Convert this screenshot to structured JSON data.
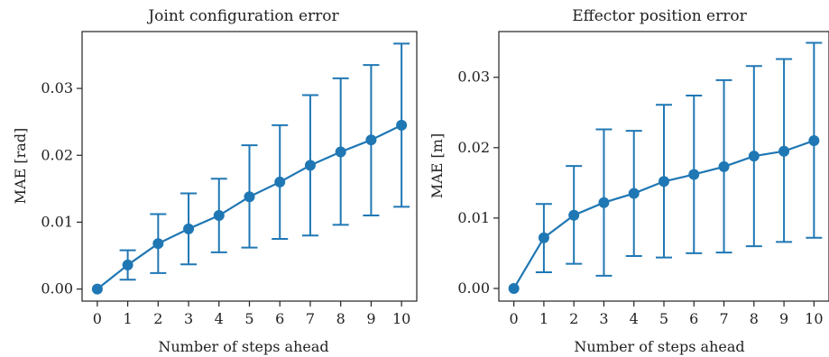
{
  "chart_data": [
    {
      "type": "line",
      "title": "Joint configuration error",
      "xlabel": "Number of steps ahead",
      "ylabel": "MAE [rad]",
      "x": [
        0,
        1,
        2,
        3,
        4,
        5,
        6,
        7,
        8,
        9,
        10
      ],
      "xlim": [
        -0.5,
        10.5
      ],
      "ylim": [
        -0.0018,
        0.0385
      ],
      "yticks": [
        0.0,
        0.01,
        0.02,
        0.03
      ],
      "ytick_labels": [
        "0.00",
        "0.01",
        "0.02",
        "0.03"
      ],
      "grid": false,
      "color": "#1f77b4",
      "series": [
        {
          "values": [
            0.0,
            0.0036,
            0.0068,
            0.009,
            0.011,
            0.0138,
            0.016,
            0.0185,
            0.0205,
            0.0223,
            0.0245
          ],
          "err_low": [
            0.0,
            0.0014,
            0.0024,
            0.0037,
            0.0055,
            0.0062,
            0.0075,
            0.008,
            0.0096,
            0.011,
            0.0123
          ],
          "err_high": [
            0.0,
            0.0058,
            0.0112,
            0.0143,
            0.0165,
            0.0215,
            0.0245,
            0.029,
            0.0315,
            0.0335,
            0.0367
          ]
        }
      ]
    },
    {
      "type": "line",
      "title": "Effector position error",
      "xlabel": "Number of steps ahead",
      "ylabel": "MAE [m]",
      "x": [
        0,
        1,
        2,
        3,
        4,
        5,
        6,
        7,
        8,
        9,
        10
      ],
      "xlim": [
        -0.5,
        10.5
      ],
      "ylim": [
        -0.0018,
        0.0365
      ],
      "yticks": [
        0.0,
        0.01,
        0.02,
        0.03
      ],
      "ytick_labels": [
        "0.00",
        "0.01",
        "0.02",
        "0.03"
      ],
      "grid": false,
      "color": "#1f77b4",
      "series": [
        {
          "values": [
            0.0,
            0.0072,
            0.0104,
            0.0122,
            0.0135,
            0.0152,
            0.0162,
            0.0173,
            0.0188,
            0.0195,
            0.021
          ],
          "err_low": [
            0.0,
            0.0023,
            0.0035,
            0.0018,
            0.0046,
            0.0044,
            0.005,
            0.0051,
            0.006,
            0.0066,
            0.0072
          ],
          "err_high": [
            0.0,
            0.012,
            0.0174,
            0.0226,
            0.0224,
            0.0261,
            0.0274,
            0.0296,
            0.0316,
            0.0326,
            0.0349
          ]
        }
      ]
    }
  ]
}
